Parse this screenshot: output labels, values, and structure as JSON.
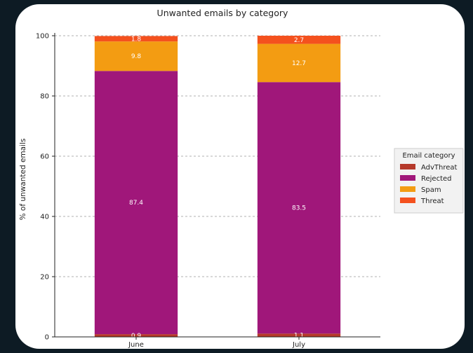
{
  "chart_data": {
    "type": "bar",
    "stacked": true,
    "title": "Unwanted emails by category",
    "xlabel": "",
    "ylabel": "% of unwanted emails",
    "ylim": [
      0,
      100
    ],
    "yticks": [
      0,
      20,
      40,
      60,
      80,
      100
    ],
    "grid": "horizontal dashed",
    "categories": [
      "June",
      "July"
    ],
    "series": [
      {
        "name": "AdvThreat",
        "values": [
          0.9,
          1.1
        ],
        "color": "#b5392a"
      },
      {
        "name": "Rejected",
        "values": [
          87.4,
          83.5
        ],
        "color": "#a0177a"
      },
      {
        "name": "Spam",
        "values": [
          9.8,
          12.7
        ],
        "color": "#f39c12"
      },
      {
        "name": "Threat",
        "values": [
          1.8,
          2.7
        ],
        "color": "#f4511e"
      }
    ],
    "legend": {
      "title": "Email category",
      "placement": "right"
    }
  },
  "colors": {
    "background": "#0d1b24",
    "card": "#ffffff"
  }
}
